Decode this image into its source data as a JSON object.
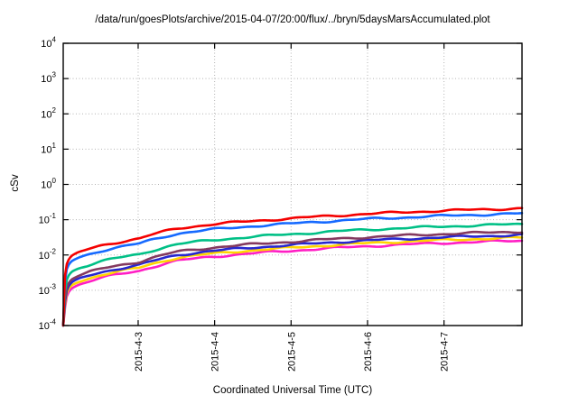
{
  "title": "/data/run/goesPlots/archive/2015-04-07/20:00/flux/../bryn/5daysMarsAccumulated.plot",
  "chart_data": {
    "type": "line",
    "title": "/data/run/goesPlots/archive/2015-04-07/20:00/flux/../bryn/5daysMarsAccumulated.plot",
    "xlabel": "Coordinated Universal Time (UTC)",
    "ylabel": "cSv",
    "y_scale": "log10",
    "y_tick_exponents": [
      4,
      3,
      2,
      1,
      0,
      -1,
      -2,
      -3,
      -4
    ],
    "ylim": [
      0.0001,
      10000
    ],
    "x_span_days": 6,
    "x_ticks": [
      {
        "label": "2015-4-3",
        "t": 0.98
      },
      {
        "label": "2015-4-4",
        "t": 1.98
      },
      {
        "label": "2015-4-5",
        "t": 2.98
      },
      {
        "label": "2015-4-6",
        "t": 3.98
      },
      {
        "label": "2015-4-7",
        "t": 4.98
      }
    ],
    "grid": "dotted",
    "legend": "none",
    "accumulation_profile": {
      "t_days": [
        0,
        0.01,
        0.02,
        0.04,
        0.08,
        0.12,
        0.2,
        0.3,
        0.5,
        0.75,
        1.0,
        1.25,
        1.5,
        2.0,
        2.5,
        3.0,
        3.5,
        4.0,
        4.5,
        5.0,
        5.5,
        6.0
      ],
      "fraction_of_final": [
        0,
        0.002,
        0.01,
        0.024,
        0.038,
        0.046,
        0.056,
        0.066,
        0.088,
        0.113,
        0.14,
        0.2,
        0.27,
        0.36,
        0.44,
        0.52,
        0.61,
        0.7,
        0.78,
        0.86,
        0.93,
        1.0
      ]
    },
    "series": [
      {
        "name": "red",
        "color": "#f40000",
        "final_cSv": 0.21
      },
      {
        "name": "blue",
        "color": "#1569ff",
        "final_cSv": 0.15
      },
      {
        "name": "teal",
        "color": "#00c086",
        "final_cSv": 0.075
      },
      {
        "name": "plum",
        "color": "#84395f",
        "final_cSv": 0.046
      },
      {
        "name": "navy",
        "color": "#2727cf",
        "final_cSv": 0.037
      },
      {
        "name": "yellow",
        "color": "#ffd400",
        "final_cSv": 0.031
      },
      {
        "name": "magenta",
        "color": "#ff1ec4",
        "final_cSv": 0.0255
      }
    ],
    "start_value_cSv": 0.0001
  }
}
